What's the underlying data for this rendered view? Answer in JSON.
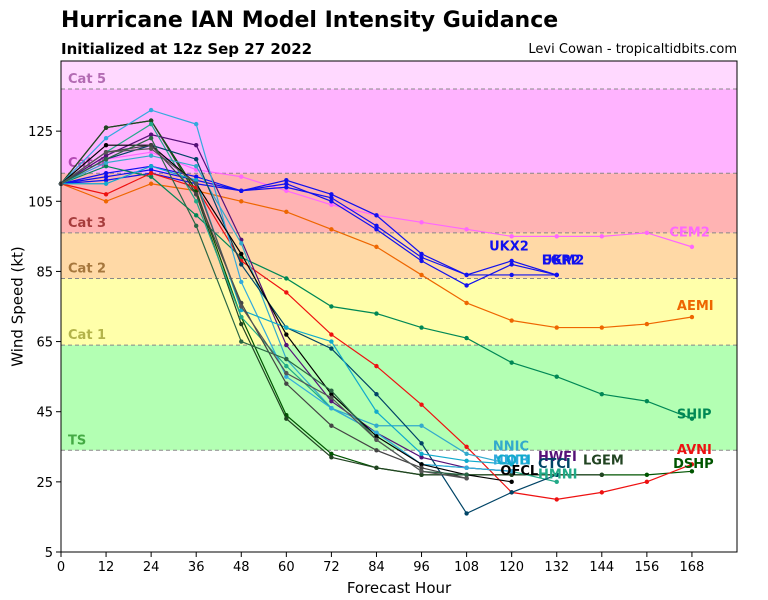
{
  "title": "Hurricane IAN Model Intensity Guidance",
  "subtitle": "Initialized at 12z Sep 27 2022",
  "credit": "Levi Cowan - tropicaltidbits.com",
  "chart_data": {
    "type": "line",
    "xlabel": "Forecast Hour",
    "ylabel": "Wind Speed (kt)",
    "xlim": [
      0,
      180
    ],
    "ylim": [
      5,
      145
    ],
    "xticks": [
      0,
      12,
      24,
      36,
      48,
      60,
      72,
      84,
      96,
      108,
      120,
      132,
      144,
      156,
      168
    ],
    "yticks": [
      5,
      25,
      45,
      65,
      85,
      105,
      125
    ],
    "grid": false,
    "categories_bands": [
      {
        "label": "TS",
        "min": 34,
        "max": 64,
        "color": "#b3ffb3",
        "label_color": "#44aa44"
      },
      {
        "label": "Cat 1",
        "min": 64,
        "max": 83,
        "color": "#ffffaa",
        "label_color": "#b3b34a"
      },
      {
        "label": "Cat 2",
        "min": 83,
        "max": 96,
        "color": "#ffd9a6",
        "label_color": "#a6773d"
      },
      {
        "label": "Cat 3",
        "min": 96,
        "max": 113,
        "color": "#ffb3b3",
        "label_color": "#a63d3d"
      },
      {
        "label": "Cat 4",
        "min": 113,
        "max": 137,
        "color": "#ffb3ff",
        "label_color": "#b34ab3"
      },
      {
        "label": "Cat 5",
        "min": 137,
        "max": 145,
        "color": "#ffd9ff",
        "label_color": "#b36bb3"
      }
    ],
    "series": [
      {
        "name": "CEM2",
        "color": "#ff66ff",
        "label_at": [
          162,
          95
        ],
        "x": [
          0,
          12,
          24,
          36,
          48,
          60,
          72,
          84,
          96,
          108,
          120,
          132,
          144,
          156,
          168
        ],
        "y": [
          110,
          117,
          119,
          114,
          112,
          108,
          104,
          101,
          99,
          97,
          95,
          95,
          95,
          96,
          92
        ]
      },
      {
        "name": "UKX2",
        "color": "#1111ee",
        "label_at": [
          114,
          91
        ],
        "x": [
          0,
          12,
          24,
          36,
          48,
          60,
          72,
          84,
          96,
          108,
          120,
          132
        ],
        "y": [
          110,
          113,
          115,
          112,
          108,
          111,
          107,
          101,
          90,
          84,
          88,
          84
        ]
      },
      {
        "name": "UKM2",
        "color": "#1111ee",
        "label_at": [
          128,
          87
        ],
        "x": [
          0,
          12,
          24,
          36,
          48,
          60,
          72,
          84,
          96,
          108,
          120,
          132
        ],
        "y": [
          110,
          111,
          113,
          110,
          108,
          110,
          105,
          97,
          88,
          81,
          87,
          84
        ]
      },
      {
        "name": "EGR2",
        "color": "#1111ee",
        "label_at": [
          128,
          87
        ],
        "x": [
          0,
          12,
          24,
          36,
          48,
          60,
          72,
          84,
          96,
          108,
          120,
          132
        ],
        "y": [
          110,
          112,
          114,
          111,
          108,
          109,
          106,
          98,
          89,
          84,
          84,
          84
        ]
      },
      {
        "name": "AEMI",
        "color": "#ee6600",
        "label_at": [
          164,
          74
        ],
        "x": [
          0,
          12,
          24,
          36,
          48,
          60,
          72,
          84,
          96,
          108,
          120,
          132,
          144,
          156,
          168
        ],
        "y": [
          110,
          105,
          110,
          108,
          105,
          102,
          97,
          92,
          84,
          76,
          71,
          69,
          69,
          70,
          72
        ]
      },
      {
        "name": "SHIP",
        "color": "#008855",
        "label_at": [
          164,
          43
        ],
        "x": [
          0,
          12,
          24,
          36,
          48,
          60,
          72,
          84,
          96,
          108,
          120,
          132,
          144,
          156,
          168
        ],
        "y": [
          110,
          115,
          112,
          101,
          89,
          83,
          75,
          73,
          69,
          66,
          59,
          55,
          50,
          48,
          43
        ]
      },
      {
        "name": "DSHP",
        "color": "#005500",
        "label_at": [
          163,
          29
        ],
        "x": [
          0,
          12,
          24,
          36,
          48,
          60,
          72,
          84,
          96,
          108,
          120,
          132,
          144,
          156,
          168
        ],
        "y": [
          110,
          126,
          128,
          108,
          72,
          44,
          33,
          29,
          27,
          27,
          27,
          27,
          27,
          27,
          28
        ]
      },
      {
        "name": "LGEM",
        "color": "#224422",
        "label_at": [
          139,
          30
        ],
        "x": [
          0,
          12,
          24,
          36,
          48,
          60,
          72,
          84,
          96,
          108,
          120,
          132,
          144
        ],
        "y": [
          110,
          126,
          128,
          107,
          70,
          43,
          32,
          29,
          27,
          27,
          27,
          27,
          27
        ]
      },
      {
        "name": "AVNI",
        "color": "#ee1111",
        "label_at": [
          164,
          33
        ],
        "x": [
          0,
          12,
          24,
          36,
          48,
          60,
          72,
          84,
          96,
          108,
          120,
          132,
          144,
          156,
          168
        ],
        "y": [
          110,
          107,
          113,
          109,
          88,
          79,
          67,
          58,
          47,
          35,
          22,
          20,
          22,
          25,
          30
        ]
      },
      {
        "name": "HWFI",
        "color": "#551177",
        "label_at": [
          127,
          31
        ],
        "x": [
          0,
          12,
          24,
          36,
          48,
          60,
          72,
          84,
          96,
          108,
          120
        ],
        "y": [
          110,
          118,
          124,
          121,
          94,
          64,
          48,
          39,
          32,
          29,
          28
        ]
      },
      {
        "name": "NNIC",
        "color": "#33aacc",
        "label_at": [
          115,
          34
        ],
        "x": [
          0,
          12,
          24,
          36,
          48,
          60,
          72,
          84,
          96,
          108,
          120
        ],
        "y": [
          110,
          116,
          118,
          115,
          93,
          60,
          46,
          41,
          41,
          33,
          30
        ]
      },
      {
        "name": "HMNI",
        "color": "#22aa88",
        "label_at": [
          127,
          26
        ],
        "x": [
          0,
          12,
          24,
          36,
          48,
          60,
          72,
          84,
          96,
          108,
          120,
          132
        ],
        "y": [
          110,
          119,
          127,
          105,
          72,
          58,
          46,
          39,
          30,
          29,
          28,
          25
        ]
      },
      {
        "name": "CTCI",
        "color": "#004466",
        "label_at": [
          127,
          29
        ],
        "x": [
          0,
          12,
          24,
          36,
          48,
          60,
          72,
          84,
          96,
          108,
          120,
          132
        ],
        "y": [
          110,
          117,
          121,
          117,
          87,
          69,
          63,
          50,
          36,
          16,
          22,
          27
        ]
      },
      {
        "name": "NNIB",
        "color": "#33aadd",
        "label_at": [
          115,
          30
        ],
        "x": [
          0,
          12,
          24,
          36,
          48,
          60,
          72,
          84,
          96,
          108,
          120
        ],
        "y": [
          110,
          123,
          131,
          127,
          82,
          55,
          46,
          39,
          30,
          29,
          28
        ]
      },
      {
        "name": "COTI",
        "color": "#11aacc",
        "label_at": [
          116,
          30
        ],
        "x": [
          0,
          12,
          24,
          36,
          48,
          60,
          72,
          84,
          96,
          108,
          120
        ],
        "y": [
          110,
          110,
          115,
          111,
          74,
          69,
          65,
          45,
          33,
          31,
          30
        ]
      },
      {
        "name": "OFCL",
        "color": "#000000",
        "label_at": [
          117,
          27
        ],
        "x": [
          0,
          12,
          24,
          36,
          48,
          60,
          72,
          84,
          96,
          108,
          120
        ],
        "y": [
          110,
          121,
          121,
          110,
          90,
          67,
          50,
          38,
          30,
          27,
          25
        ]
      },
      {
        "name": "",
        "color": "#444444",
        "label_at": null,
        "x": [
          0,
          12,
          24,
          36,
          48,
          60,
          72,
          84,
          96,
          108
        ],
        "y": [
          110,
          119,
          121,
          107,
          76,
          53,
          41,
          34,
          29,
          26
        ]
      },
      {
        "name": "",
        "color": "#2a6644",
        "label_at": null,
        "x": [
          0,
          12,
          24,
          36,
          48,
          60,
          72,
          84,
          96,
          108
        ],
        "y": [
          110,
          117,
          123,
          98,
          65,
          60,
          51,
          37,
          28,
          27
        ]
      },
      {
        "name": "",
        "color": "#555555",
        "label_at": null,
        "x": [
          0,
          12,
          24,
          36,
          48,
          60,
          72,
          84,
          96,
          108
        ],
        "y": [
          110,
          119,
          120,
          110,
          75,
          56,
          49,
          37,
          28,
          26
        ]
      }
    ]
  }
}
